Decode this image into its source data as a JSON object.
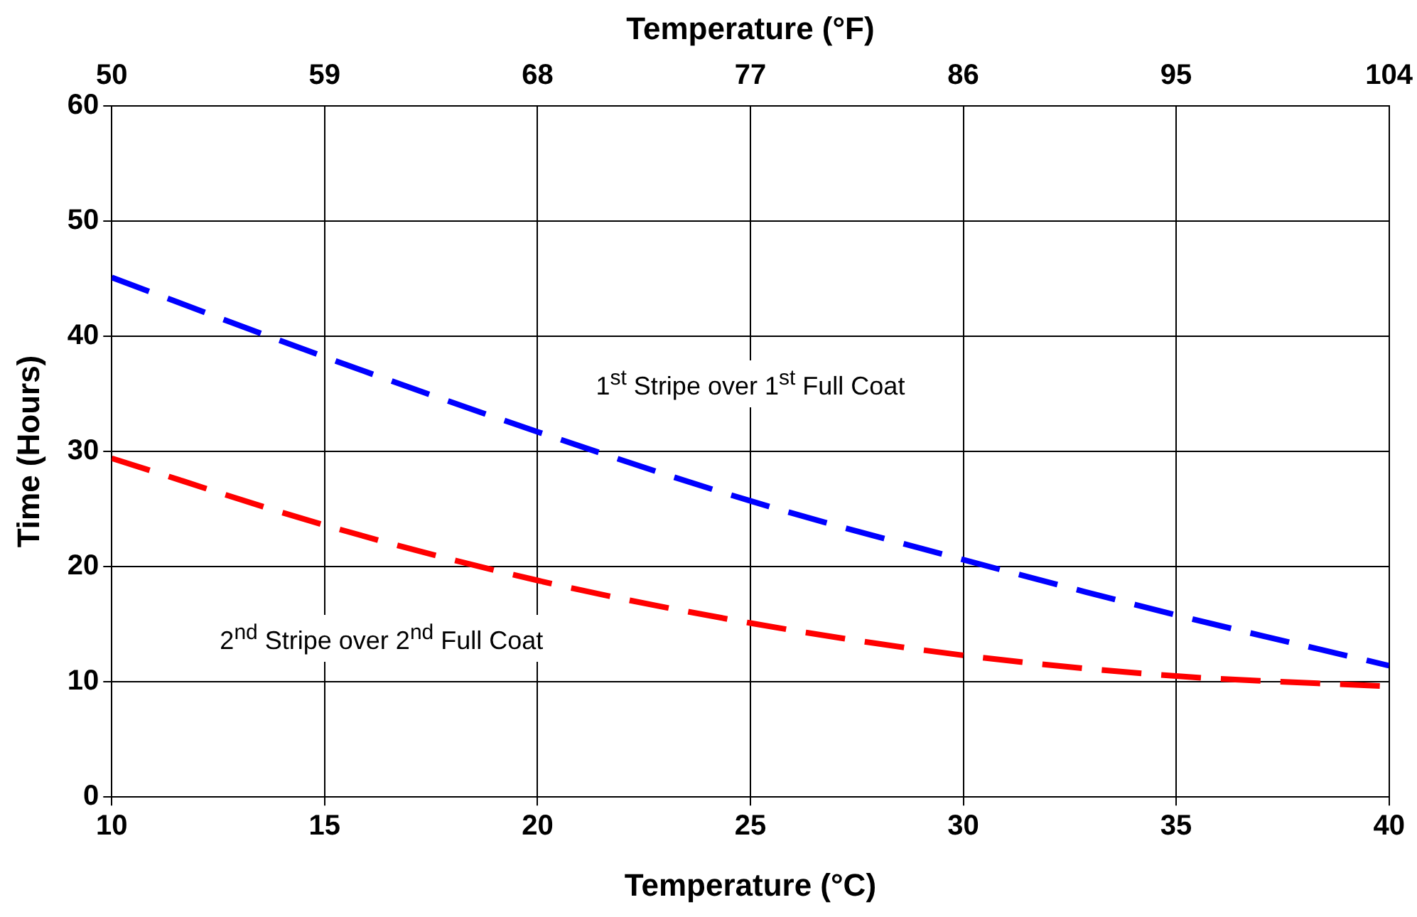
{
  "chart_data": {
    "type": "line",
    "xlabel": "Temperature (°C)",
    "x2label": "Temperature (°F)",
    "ylabel": "Time (Hours)",
    "x": [
      10,
      15,
      20,
      25,
      30,
      35,
      40
    ],
    "xlim": [
      10,
      40
    ],
    "xticks": [
      10,
      15,
      20,
      25,
      30,
      35,
      40
    ],
    "x2lim": [
      50,
      104
    ],
    "x2ticks": [
      50,
      59,
      68,
      77,
      86,
      95,
      104
    ],
    "ylim": [
      0,
      60
    ],
    "yticks": [
      0,
      10,
      20,
      30,
      40,
      50,
      60
    ],
    "grid": true,
    "legend": false,
    "marker": "none",
    "line_style": "dashed",
    "series": [
      {
        "name": "1$^{st}$ Stripe over 1$^{st}$ Full Coat",
        "color": "#0000ff",
        "values": [
          45.1,
          38.2,
          31.7,
          25.7,
          20.6,
          15.8,
          11.4
        ]
      },
      {
        "name": "2$^{nd}$ Stripe over 2$^{nd}$ Full Coat",
        "color": "#ff0000",
        "values": [
          29.4,
          23.6,
          18.8,
          15.1,
          12.3,
          10.5,
          9.6
        ]
      }
    ]
  }
}
